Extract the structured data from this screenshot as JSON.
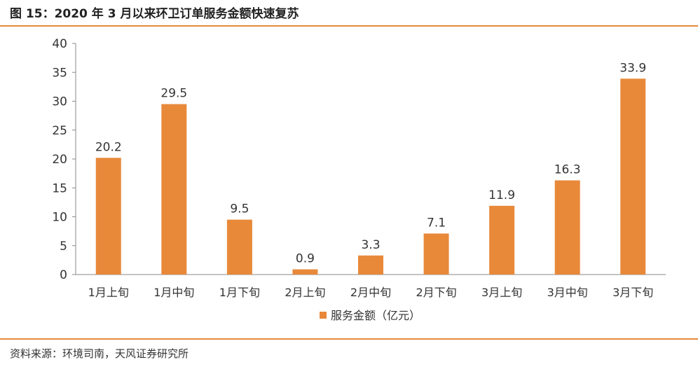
{
  "title": "图 15：2020 年 3 月以来环卫订单服务金额快速复苏",
  "source": "资料来源：环境司南，天风证券研究所",
  "chart_data": {
    "type": "bar",
    "categories": [
      "1月上旬",
      "1月中旬",
      "1月下旬",
      "2月上旬",
      "2月中旬",
      "2月下旬",
      "3月上旬",
      "3月中旬",
      "3月下旬"
    ],
    "series": [
      {
        "name": "服务金额（亿元）",
        "values": [
          20.2,
          29.5,
          9.5,
          0.9,
          3.3,
          7.1,
          11.9,
          16.3,
          33.9
        ],
        "color": "#e8893a"
      }
    ],
    "ylim": [
      0,
      40
    ],
    "yticks": [
      0,
      5,
      10,
      15,
      20,
      25,
      30,
      35,
      40
    ],
    "grid": false,
    "legend_position": "bottom-center"
  }
}
